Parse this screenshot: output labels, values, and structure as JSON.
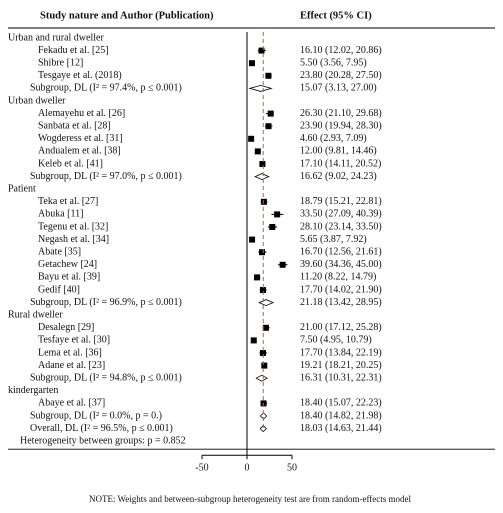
{
  "chart_data": {
    "type": "forest",
    "column_headers": [
      "Study nature and Author (Publication)",
      "Effect (95% CI)"
    ],
    "groups": [
      {
        "name": "Urban and rural dweller",
        "studies": [
          {
            "label": "Fekadu et al. [25]",
            "value": 16.1,
            "lower": 12.02,
            "upper": 20.86,
            "value_label": "16.10 (12.02, 20.86)"
          },
          {
            "label": "Shibre [12]",
            "value": 5.5,
            "lower": 3.56,
            "upper": 7.95,
            "value_label": "5.50 (3.56, 7.95)"
          },
          {
            "label": "Tesgaye et al. (2018)",
            "value": 23.8,
            "lower": 20.28,
            "upper": 27.5,
            "value_label": "23.80 (20.28, 27.50)"
          }
        ],
        "subgroup": {
          "label": "Subgroup, DL (I² = 97.4%, p ≤ 0.001)",
          "value": 15.07,
          "lower": 3.13,
          "upper": 27.0,
          "value_label": "15.07 (3.13, 27.00)"
        }
      },
      {
        "name": "Urban dweller",
        "studies": [
          {
            "label": "Alemayehu et al. [26]",
            "value": 26.3,
            "lower": 21.1,
            "upper": 29.68,
            "value_label": "26.30 (21.10, 29.68)"
          },
          {
            "label": "Sanbata et al. [28]",
            "value": 23.9,
            "lower": 19.94,
            "upper": 28.3,
            "value_label": "23.90 (19.94, 28.30)"
          },
          {
            "label": "Wogderess et al. [31]",
            "value": 4.6,
            "lower": 2.93,
            "upper": 7.09,
            "value_label": "4.60 (2.93, 7.09)"
          },
          {
            "label": "Andualem et al. [38]",
            "value": 12.0,
            "lower": 9.81,
            "upper": 14.46,
            "value_label": "12.00 (9.81, 14.46)"
          },
          {
            "label": "Keleb et al. [41]",
            "value": 17.1,
            "lower": 14.11,
            "upper": 20.52,
            "value_label": "17.10 (14.11, 20.52)"
          }
        ],
        "subgroup": {
          "label": "Subgroup, DL (I² = 97.0%, p ≤ 0.001)",
          "value": 16.62,
          "lower": 9.02,
          "upper": 24.23,
          "value_label": "16.62 (9.02, 24.23)"
        }
      },
      {
        "name": "Patient",
        "studies": [
          {
            "label": "Teka et al. [27]",
            "value": 18.79,
            "lower": 15.21,
            "upper": 22.81,
            "value_label": "18.79 (15.21, 22.81)"
          },
          {
            "label": "Abuka [11]",
            "value": 33.5,
            "lower": 27.09,
            "upper": 40.39,
            "value_label": "33.50 (27.09, 40.39)"
          },
          {
            "label": "Tegenu et al. [32]",
            "value": 28.1,
            "lower": 23.14,
            "upper": 33.5,
            "value_label": "28.10 (23.14, 33.50)"
          },
          {
            "label": "Negash et al. [34]",
            "value": 5.65,
            "lower": 3.87,
            "upper": 7.92,
            "value_label": "5.65 (3.87, 7.92)"
          },
          {
            "label": "Abate [35]",
            "value": 16.7,
            "lower": 12.56,
            "upper": 21.61,
            "value_label": "16.70 (12.56, 21.61)"
          },
          {
            "label": "Getachew [24]",
            "value": 39.6,
            "lower": 34.36,
            "upper": 45.0,
            "value_label": "39.60 (34.36, 45.00)"
          },
          {
            "label": "Bayu et al. [39]",
            "value": 11.2,
            "lower": 8.22,
            "upper": 14.79,
            "value_label": "11.20 (8.22, 14.79)"
          },
          {
            "label": "Gedif [40]",
            "value": 17.7,
            "lower": 14.02,
            "upper": 21.9,
            "value_label": "17.70 (14.02, 21.90)"
          }
        ],
        "subgroup": {
          "label": "Subgroup, DL (I² = 96.9%, p ≤ 0.001)",
          "value": 21.18,
          "lower": 13.42,
          "upper": 28.95,
          "value_label": "21.18 (13.42, 28.95)"
        }
      },
      {
        "name": "Rural dweller",
        "studies": [
          {
            "label": "Desalegn [29]",
            "value": 21.0,
            "lower": 17.12,
            "upper": 25.28,
            "value_label": "21.00 (17.12, 25.28)"
          },
          {
            "label": "Tesfaye et al. [30]",
            "value": 7.5,
            "lower": 4.95,
            "upper": 10.79,
            "value_label": "7.50 (4.95, 10.79)"
          },
          {
            "label": "Lema et al. [36]",
            "value": 17.7,
            "lower": 13.84,
            "upper": 22.19,
            "value_label": "17.70 (13.84, 22.19)"
          },
          {
            "label": "Adane et al. [23]",
            "value": 19.21,
            "lower": 18.21,
            "upper": 20.25,
            "value_label": "19.21 (18.21, 20.25)"
          }
        ],
        "subgroup": {
          "label": "Subgroup, DL (I² = 94.8%, p ≤ 0.001)",
          "value": 16.31,
          "lower": 10.31,
          "upper": 22.31,
          "value_label": "16.31 (10.31, 22.31)"
        }
      },
      {
        "name": "kindergarten",
        "studies": [
          {
            "label": "Abaye et al. [37]",
            "value": 18.4,
            "lower": 15.07,
            "upper": 22.23,
            "value_label": "18.40 (15.07, 22.23)"
          }
        ],
        "subgroup": {
          "label": "Subgroup, DL (I² = 0.0%, p = 0.)",
          "value": 18.4,
          "lower": 14.82,
          "upper": 21.98,
          "value_label": "18.40 (14.82, 21.98)"
        }
      }
    ],
    "overall": {
      "label": "Overall, DL (I² = 96.5%, p ≤ 0.001)",
      "value": 18.03,
      "lower": 14.63,
      "upper": 21.44,
      "value_label": "18.03 (14.63, 21.44)"
    },
    "heterogeneity": "Heterogeneity between groups: p = 0.852",
    "note": "NOTE: Weights and between-subgroup heterogeneity test are from random-effects model",
    "xlim": [
      -50,
      50
    ],
    "xticks": [
      -50,
      0,
      50
    ]
  }
}
